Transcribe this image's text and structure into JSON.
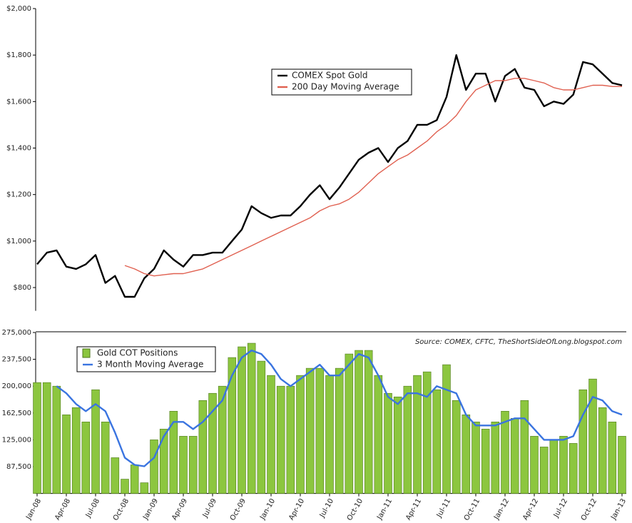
{
  "chart_data": [
    {
      "type": "line",
      "ylim": [
        700,
        2000
      ],
      "yticks": [
        {
          "value": 800,
          "label": "$800"
        },
        {
          "value": 1000,
          "label": "$1,000"
        },
        {
          "value": 1200,
          "label": "$1,200"
        },
        {
          "value": 1400,
          "label": "$1,400"
        },
        {
          "value": 1600,
          "label": "$1,600"
        },
        {
          "value": 1800,
          "label": "$1,800"
        },
        {
          "value": 2000,
          "label": "$2,000"
        }
      ],
      "legend": "upper center",
      "series": [
        {
          "name": "COMEX Spot Gold",
          "color": "#000000",
          "values": [
            900,
            950,
            960,
            890,
            880,
            900,
            940,
            820,
            850,
            760,
            760,
            840,
            880,
            960,
            920,
            890,
            940,
            940,
            950,
            950,
            1000,
            1050,
            1150,
            1120,
            1100,
            1110,
            1110,
            1150,
            1200,
            1240,
            1180,
            1230,
            1290,
            1350,
            1380,
            1400,
            1340,
            1400,
            1430,
            1500,
            1500,
            1520,
            1620,
            1800,
            1650,
            1720,
            1720,
            1600,
            1710,
            1740,
            1660,
            1650,
            1580,
            1600,
            1590,
            1630,
            1770,
            1760,
            1720,
            1680,
            1670
          ]
        },
        {
          "name": "200 Day Moving Average",
          "color": "#e06050",
          "values": [
            null,
            null,
            null,
            null,
            null,
            null,
            null,
            null,
            null,
            895,
            880,
            860,
            850,
            855,
            860,
            860,
            870,
            880,
            900,
            920,
            940,
            960,
            980,
            1000,
            1020,
            1040,
            1060,
            1080,
            1100,
            1130,
            1150,
            1160,
            1180,
            1210,
            1250,
            1290,
            1320,
            1350,
            1370,
            1400,
            1430,
            1470,
            1500,
            1540,
            1600,
            1650,
            1670,
            1690,
            1690,
            1700,
            1700,
            1690,
            1680,
            1660,
            1650,
            1650,
            1660,
            1670,
            1670,
            1665,
            1665
          ]
        }
      ]
    },
    {
      "type": "bar",
      "ylim": [
        50000,
        275000
      ],
      "yticks": [
        {
          "value": 87500,
          "label": "87,500"
        },
        {
          "value": 125000,
          "label": "125,000"
        },
        {
          "value": 162500,
          "label": "162,500"
        },
        {
          "value": 200000,
          "label": "200,000"
        },
        {
          "value": 237500,
          "label": "237,500"
        },
        {
          "value": 275000,
          "label": "275,000"
        }
      ],
      "annotation": "Source: COMEX, CFTC, TheShortSideOfLong.blogspot.com",
      "legend": "upper left",
      "categories": [
        "Jan-08",
        null,
        null,
        "Apr-08",
        null,
        null,
        "Jul-08",
        null,
        null,
        "Oct-08",
        null,
        null,
        "Jan-09",
        null,
        null,
        "Apr-09",
        null,
        null,
        "Jul-09",
        null,
        null,
        "Oct-09",
        null,
        null,
        "Jan-10",
        null,
        null,
        "Apr-10",
        null,
        null,
        "Jul-10",
        null,
        null,
        "Oct-10",
        null,
        null,
        "Jan-11",
        null,
        null,
        "Apr-11",
        null,
        null,
        "Jul-11",
        null,
        null,
        "Oct-11",
        null,
        null,
        "Jan-12",
        null,
        null,
        "Apr-12",
        null,
        null,
        "Jul-12",
        null,
        null,
        "Oct-12",
        null,
        null,
        "Jan-13"
      ],
      "series": [
        {
          "name": "Gold COT Positions",
          "color": "#8cc63f",
          "values": [
            205000,
            205000,
            200000,
            160000,
            170000,
            150000,
            195000,
            150000,
            100000,
            70000,
            90000,
            65000,
            125000,
            140000,
            165000,
            130000,
            130000,
            180000,
            190000,
            200000,
            240000,
            255000,
            260000,
            235000,
            215000,
            200000,
            200000,
            215000,
            225000,
            225000,
            215000,
            225000,
            245000,
            250000,
            250000,
            215000,
            190000,
            185000,
            200000,
            215000,
            220000,
            195000,
            230000,
            180000,
            160000,
            150000,
            140000,
            150000,
            165000,
            155000,
            180000,
            130000,
            115000,
            125000,
            130000,
            120000,
            195000,
            210000,
            170000,
            150000,
            130000
          ]
        },
        {
          "name": "3 Month Moving Average",
          "color": "#3a74e0",
          "values": [
            null,
            null,
            200000,
            190000,
            175000,
            165000,
            175000,
            165000,
            135000,
            100000,
            90000,
            88000,
            100000,
            130000,
            150000,
            150000,
            140000,
            150000,
            165000,
            180000,
            215000,
            240000,
            250000,
            245000,
            230000,
            210000,
            200000,
            210000,
            220000,
            230000,
            215000,
            215000,
            230000,
            245000,
            240000,
            215000,
            185000,
            175000,
            190000,
            190000,
            185000,
            200000,
            195000,
            190000,
            160000,
            145000,
            145000,
            145000,
            150000,
            155000,
            155000,
            140000,
            125000,
            125000,
            125000,
            130000,
            160000,
            185000,
            180000,
            165000,
            160000
          ]
        }
      ]
    }
  ]
}
